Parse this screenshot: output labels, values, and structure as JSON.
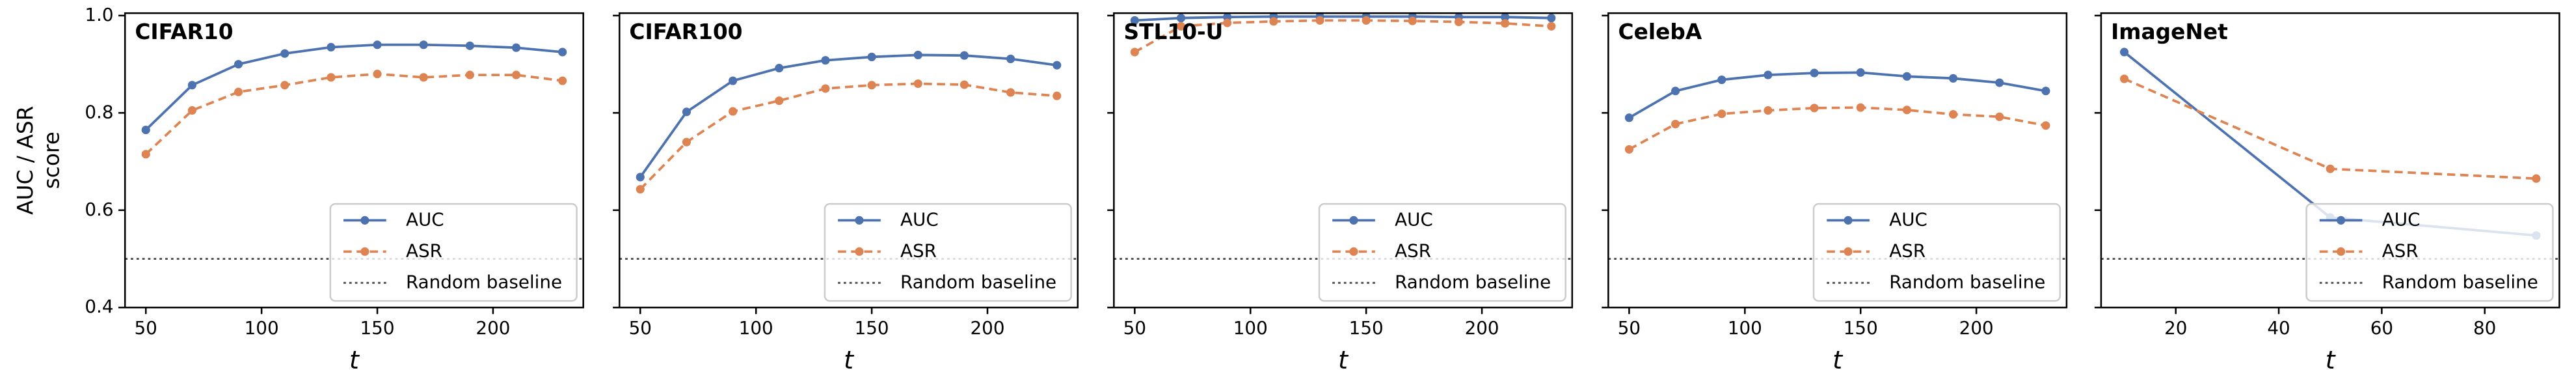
{
  "chart_data": [
    {
      "type": "line",
      "title": "CIFAR10",
      "xlabel": "t",
      "ylabel": [
        "AUC / ASR",
        "score"
      ],
      "x": [
        50,
        70,
        90,
        110,
        130,
        150,
        170,
        190,
        210,
        230
      ],
      "series": [
        {
          "name": "AUC",
          "color": "#4c72b0",
          "values": [
            0.765,
            0.857,
            0.9,
            0.922,
            0.935,
            0.94,
            0.94,
            0.938,
            0.934,
            0.925
          ]
        },
        {
          "name": "ASR",
          "color": "#dd8452",
          "values": [
            0.715,
            0.805,
            0.843,
            0.857,
            0.873,
            0.88,
            0.873,
            0.878,
            0.878,
            0.866
          ]
        }
      ],
      "baseline": {
        "name": "Random baseline",
        "value": 0.5
      },
      "xlim": [
        41,
        239
      ],
      "xticks": [
        50,
        100,
        150,
        200
      ],
      "ylim": [
        0.4,
        1.005
      ],
      "yticks": [
        {
          "value": 0.4,
          "label": "0.4"
        },
        {
          "value": 0.6,
          "label": "0.6"
        },
        {
          "value": 0.8,
          "label": "0.8"
        },
        {
          "value": 1.0,
          "label": "1.0"
        }
      ],
      "legend": "lower right"
    },
    {
      "type": "line",
      "title": "CIFAR100",
      "xlabel": "t",
      "x": [
        50,
        70,
        90,
        110,
        130,
        150,
        170,
        190,
        210,
        230
      ],
      "series": [
        {
          "name": "AUC",
          "color": "#4c72b0",
          "values": [
            0.668,
            0.802,
            0.866,
            0.892,
            0.908,
            0.915,
            0.919,
            0.918,
            0.911,
            0.898
          ]
        },
        {
          "name": "ASR",
          "color": "#dd8452",
          "values": [
            0.643,
            0.74,
            0.803,
            0.825,
            0.85,
            0.857,
            0.86,
            0.858,
            0.842,
            0.835
          ]
        }
      ],
      "baseline": {
        "name": "Random baseline",
        "value": 0.5
      },
      "xlim": [
        41,
        239
      ],
      "xticks": [
        50,
        100,
        150,
        200
      ],
      "ylim": [
        0.4,
        1.005
      ],
      "legend": "lower right"
    },
    {
      "type": "line",
      "title": "STL10-U",
      "xlabel": "t",
      "x": [
        50,
        70,
        90,
        110,
        130,
        150,
        170,
        190,
        210,
        230
      ],
      "series": [
        {
          "name": "AUC",
          "color": "#4c72b0",
          "values": [
            0.99,
            0.995,
            0.997,
            0.998,
            0.998,
            0.998,
            0.998,
            0.997,
            0.997,
            0.995
          ]
        },
        {
          "name": "ASR",
          "color": "#dd8452",
          "values": [
            0.925,
            0.978,
            0.985,
            0.988,
            0.99,
            0.99,
            0.989,
            0.987,
            0.984,
            0.978
          ]
        }
      ],
      "baseline": {
        "name": "Random baseline",
        "value": 0.5
      },
      "xlim": [
        41,
        239
      ],
      "xticks": [
        50,
        100,
        150,
        200
      ],
      "ylim": [
        0.4,
        1.005
      ],
      "legend": "lower right"
    },
    {
      "type": "line",
      "title": "CelebA",
      "xlabel": "t",
      "x": [
        50,
        70,
        90,
        110,
        130,
        150,
        170,
        190,
        210,
        230
      ],
      "series": [
        {
          "name": "AUC",
          "color": "#4c72b0",
          "values": [
            0.79,
            0.845,
            0.868,
            0.878,
            0.882,
            0.883,
            0.875,
            0.871,
            0.862,
            0.845
          ]
        },
        {
          "name": "ASR",
          "color": "#dd8452",
          "values": [
            0.725,
            0.777,
            0.798,
            0.805,
            0.81,
            0.811,
            0.806,
            0.797,
            0.792,
            0.774
          ]
        }
      ],
      "baseline": {
        "name": "Random baseline",
        "value": 0.5
      },
      "xlim": [
        41,
        239
      ],
      "xticks": [
        50,
        100,
        150,
        200
      ],
      "ylim": [
        0.4,
        1.005
      ],
      "legend": "lower right"
    },
    {
      "type": "line",
      "title": "ImageNet",
      "xlabel": "t",
      "x": [
        10,
        50,
        90
      ],
      "series": [
        {
          "name": "AUC",
          "color": "#4c72b0",
          "values": [
            0.925,
            0.585,
            0.548
          ]
        },
        {
          "name": "ASR",
          "color": "#dd8452",
          "values": [
            0.87,
            0.685,
            0.665
          ]
        }
      ],
      "baseline": {
        "name": "Random baseline",
        "value": 0.5
      },
      "xlim": [
        5.5,
        94.5
      ],
      "xticks": [
        20,
        40,
        60,
        80
      ],
      "ylim": [
        0.4,
        1.005
      ],
      "legend": "lower right"
    }
  ]
}
